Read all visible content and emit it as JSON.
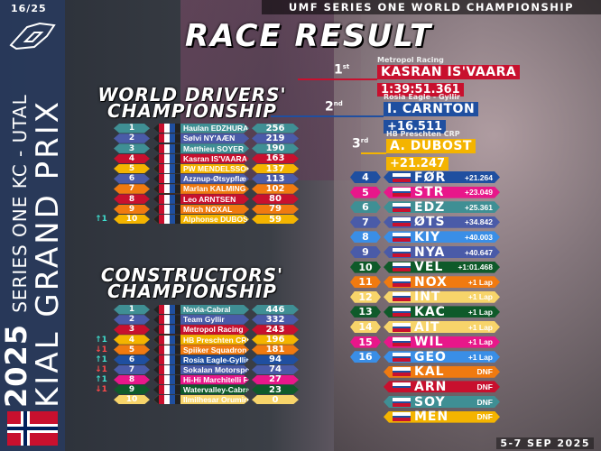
{
  "header": {
    "round": "16/25",
    "series": "UMF SERIES ONE WORLD CHAMPIONSHIP",
    "title": "RACE RESULT",
    "date": "5-7 SEP 2025"
  },
  "event": {
    "year": "2025",
    "series_line": "SERIES ONE KC - UTAL",
    "gp_name": "KIAL GRAND PRIX",
    "flag": "norway-flag"
  },
  "colors": {
    "teal": "#3f8f94",
    "blue": "#4a5ba8",
    "red": "#c8102e",
    "yellow": "#f4b400",
    "orange": "#f07a10",
    "pink": "#e8178a",
    "lightblue": "#3a8ee6",
    "green": "#0f5a2a",
    "paleyellow": "#f7d46a",
    "navy": "#1f4fa0"
  },
  "podium": [
    {
      "pos": "1",
      "suffix": "st",
      "team": "Metropol Racing",
      "name": "KASRAN IS'VAARA",
      "time": "1:39:51.361",
      "color": "#c8102e"
    },
    {
      "pos": "2",
      "suffix": "nd",
      "team": "Rosia Eagle - Gyllir",
      "name": "I. CARNTON",
      "time": "+16.511",
      "color": "#1f4fa0"
    },
    {
      "pos": "3",
      "suffix": "rd",
      "team": "HB Preschten CRP",
      "name": "A. DUBOST",
      "time": "+21.247",
      "color": "#f4b400"
    }
  ],
  "drivers": {
    "title_line1": "WORLD DRIVERS'",
    "title_line2": "CHAMPIONSHIP",
    "rows": [
      {
        "rank": "1",
        "name": "Haulan EDZHURAT",
        "points": "256",
        "color": "#3f8f94",
        "change": ""
      },
      {
        "rank": "2",
        "name": "Sølvi NY'AÆN",
        "points": "219",
        "color": "#4a5ba8",
        "change": ""
      },
      {
        "rank": "3",
        "name": "Matthieu SOYER",
        "points": "190",
        "color": "#3f8f94",
        "change": ""
      },
      {
        "rank": "4",
        "name": "Kasran IS'VAARA",
        "points": "163",
        "color": "#c8102e",
        "change": ""
      },
      {
        "rank": "5",
        "name": "PW MENDELSSOHN",
        "points": "137",
        "color": "#f4b400",
        "change": ""
      },
      {
        "rank": "6",
        "name": "Azznup-Øtsypflæ",
        "points": "113",
        "color": "#4a5ba8",
        "change": ""
      },
      {
        "rank": "7",
        "name": "Marlan KALMING",
        "points": "102",
        "color": "#f07a10",
        "change": ""
      },
      {
        "rank": "8",
        "name": "Leo ARNTSEN",
        "points": "80",
        "color": "#c8102e",
        "change": ""
      },
      {
        "rank": "9",
        "name": "Mitch NOXAL",
        "points": "79",
        "color": "#f07a10",
        "change": ""
      },
      {
        "rank": "10",
        "name": "Alphonse DUBOST",
        "points": "59",
        "color": "#f4b400",
        "change": "↑1"
      }
    ]
  },
  "constructors": {
    "title_line1": "CONSTRUCTORS'",
    "title_line2": "CHAMPIONSHIP",
    "rows": [
      {
        "rank": "1",
        "name": "Novia-Cabral",
        "points": "446",
        "color": "#3f8f94",
        "change": ""
      },
      {
        "rank": "2",
        "name": "Team Gyllir",
        "points": "332",
        "color": "#4a5ba8",
        "change": ""
      },
      {
        "rank": "3",
        "name": "Metropol Racing",
        "points": "243",
        "color": "#c8102e",
        "change": ""
      },
      {
        "rank": "4",
        "name": "HB Preschten CRP",
        "points": "196",
        "color": "#f4b400",
        "change": "↑1"
      },
      {
        "rank": "5",
        "name": "Spiiker Squadron",
        "points": "181",
        "color": "#f07a10",
        "change": "↓1"
      },
      {
        "rank": "6",
        "name": "Rosia Eagle-Gyllir",
        "points": "94",
        "color": "#1f4fa0",
        "change": "↑1"
      },
      {
        "rank": "7",
        "name": "Sokalan Motorsports-Spiiker",
        "points": "74",
        "color": "#4a5ba8",
        "change": "↓1"
      },
      {
        "rank": "8",
        "name": "Hi-Hi Marchitelli Falcon-Spiiker",
        "points": "27",
        "color": "#e8178a",
        "change": "↑1"
      },
      {
        "rank": "9",
        "name": "Watervalley-Cabral",
        "points": "23",
        "color": "#0f5a2a",
        "change": "↓1"
      },
      {
        "rank": "10",
        "name": "Ilmilhesar Orumirin-Preschten",
        "points": "0",
        "color": "#f7d46a",
        "change": ""
      }
    ]
  },
  "results": [
    {
      "pos": "4",
      "code": "FØR",
      "gap": "+21.264",
      "color": "#1f4fa0"
    },
    {
      "pos": "5",
      "code": "STR",
      "gap": "+23.049",
      "color": "#e8178a"
    },
    {
      "pos": "6",
      "code": "EDZ",
      "gap": "+25.361",
      "color": "#3f8f94"
    },
    {
      "pos": "7",
      "code": "ØTS",
      "gap": "+34.842",
      "color": "#4a5ba8"
    },
    {
      "pos": "8",
      "code": "KIY",
      "gap": "+40.003",
      "color": "#3a8ee6"
    },
    {
      "pos": "9",
      "code": "NYA",
      "gap": "+40.647",
      "color": "#4a5ba8"
    },
    {
      "pos": "10",
      "code": "VEL",
      "gap": "+1:01.468",
      "color": "#0f5a2a"
    },
    {
      "pos": "11",
      "code": "NOX",
      "gap": "+1 Lap",
      "color": "#f07a10"
    },
    {
      "pos": "12",
      "code": "INT",
      "gap": "+1 Lap",
      "color": "#f7d46a"
    },
    {
      "pos": "13",
      "code": "KAC",
      "gap": "+1 Lap",
      "color": "#0f5a2a"
    },
    {
      "pos": "14",
      "code": "AÏT",
      "gap": "+1 Lap",
      "color": "#f7d46a"
    },
    {
      "pos": "15",
      "code": "WIL",
      "gap": "+1 Lap",
      "color": "#e8178a"
    },
    {
      "pos": "16",
      "code": "GEO",
      "gap": "+1 Lap",
      "color": "#3a8ee6"
    },
    {
      "pos": "",
      "code": "KAL",
      "gap": "DNF",
      "color": "#f07a10"
    },
    {
      "pos": "",
      "code": "ARN",
      "gap": "DNF",
      "color": "#c8102e"
    },
    {
      "pos": "",
      "code": "SOY",
      "gap": "DNF",
      "color": "#3f8f94"
    },
    {
      "pos": "",
      "code": "MEN",
      "gap": "DNF",
      "color": "#f4b400"
    }
  ]
}
